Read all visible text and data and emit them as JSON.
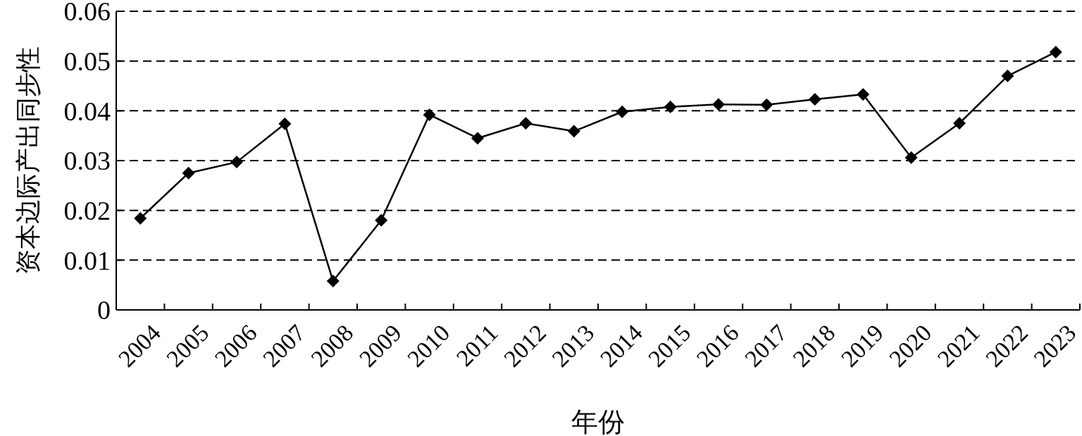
{
  "chart_data": {
    "type": "line",
    "xlabel": "年份",
    "ylabel": "资本边际产出同步性",
    "categories": [
      "2004",
      "2005",
      "2006",
      "2007",
      "2008",
      "2009",
      "2010",
      "2011",
      "2012",
      "2013",
      "2014",
      "2015",
      "2016",
      "2017",
      "2018",
      "2019",
      "2020",
      "2021",
      "2022",
      "2023"
    ],
    "series": [
      {
        "color": "#000000",
        "values": [
          0.0184,
          0.0275,
          0.0297,
          0.0374,
          0.0058,
          0.018,
          0.0392,
          0.0345,
          0.0375,
          0.0359,
          0.0398,
          0.0408,
          0.0413,
          0.0412,
          0.0423,
          0.0433,
          0.0306,
          0.0375,
          0.047,
          0.0518
        ]
      }
    ],
    "ylim": [
      0,
      0.06
    ],
    "yticks": [
      0,
      0.01,
      0.02,
      0.03,
      0.04,
      0.05,
      0.06
    ],
    "grid": "y",
    "marker": "diamond",
    "line_style": "solid"
  }
}
